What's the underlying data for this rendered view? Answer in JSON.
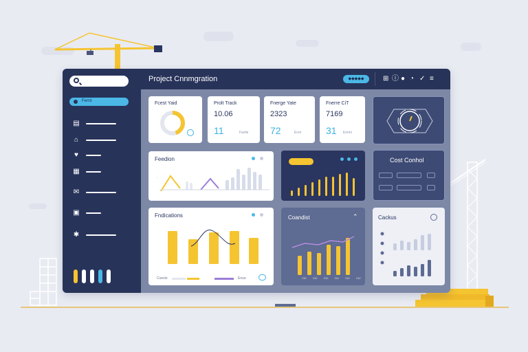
{
  "header": {
    "title": "Project Cnnmgration",
    "action_label": "◆◆◆◆◆"
  },
  "toolbar_icons": [
    "grid-icon",
    "info-icon",
    "settings-icon",
    "clock-icon",
    "check-icon",
    "menu-icon"
  ],
  "sidebar": {
    "search_placeholder": "",
    "active_label": "Ferrd",
    "items": [
      {
        "icon": "briefcase-icon"
      },
      {
        "icon": "home-icon"
      },
      {
        "icon": "heart-icon"
      },
      {
        "icon": "team-icon"
      },
      {
        "icon": "mail-icon"
      },
      {
        "icon": "shield-icon"
      },
      {
        "icon": "gear-icon"
      }
    ],
    "pill_colors": [
      "#f5c431",
      "#ffffff",
      "#ffffff",
      "#4bb8e6",
      "#ffffff"
    ]
  },
  "kpis": [
    {
      "title": "Fcest Yaid",
      "donut_fraction": 0.45
    },
    {
      "title": "Prolt Track",
      "value": "10.06",
      "big": "11",
      "sub": "Facile"
    },
    {
      "title": "Fnerge Yate",
      "value": "2323",
      "big": "72",
      "sub": "Ecrn"
    },
    {
      "title": "Fnerre CiT",
      "value": "7169",
      "big": "31",
      "sub": "Eonni"
    }
  ],
  "cards": {
    "feedion": {
      "title": "Feedion"
    },
    "dark_chart": {
      "title": ""
    },
    "cost_control": {
      "title": "Cost Conhol"
    },
    "fndications": {
      "title": "Fndications",
      "legend": [
        "Coeslo",
        "Enuo"
      ]
    },
    "coandist": {
      "title": "Coandist",
      "x_labels": [
        "CtC",
        "CtC",
        "CtC",
        "CtC",
        "CtC",
        "CtC"
      ]
    },
    "cackus": {
      "title": "Cackus"
    }
  },
  "colors": {
    "accent_yellow": "#f5c431",
    "accent_blue": "#4bb8e6",
    "navy": "#28335a",
    "purple": "#9b7ed6"
  }
}
